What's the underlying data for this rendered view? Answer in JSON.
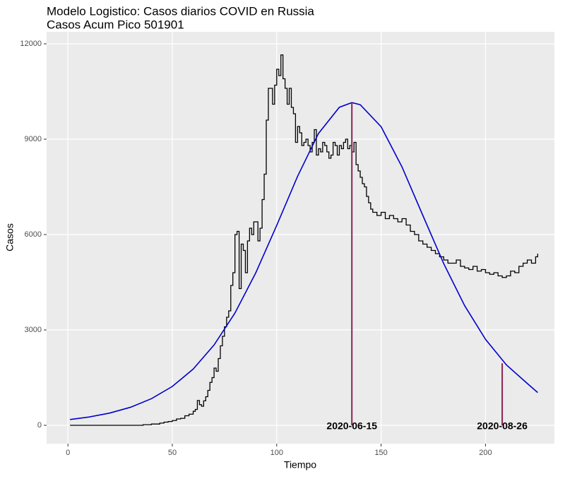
{
  "chart_data": {
    "type": "step",
    "title": "Modelo Logistico: Casos diarios COVID en Russia",
    "subtitle": "Casos Acum Pico 501901",
    "x_label": "Tiempo",
    "y_label": "Casos",
    "xlim": [
      -10.2,
      233
    ],
    "ylim": [
      -578,
      12378
    ],
    "xticks": [
      0,
      50,
      100,
      150,
      200
    ],
    "yticks": [
      0,
      3000,
      6000,
      9000,
      12000
    ],
    "grid": true,
    "series": [
      {
        "color": "#000000",
        "x": [
          1,
          36,
          40,
          44,
          46,
          48,
          50,
          52,
          54,
          56,
          58,
          60,
          61,
          62,
          63,
          64,
          65,
          66,
          67,
          68,
          69,
          70,
          71,
          72,
          73,
          74,
          75,
          76,
          77,
          78,
          79,
          80,
          81,
          82,
          83,
          84,
          85,
          86,
          87,
          88,
          89,
          90,
          91,
          92,
          93,
          94,
          95,
          96,
          97,
          98,
          99,
          100,
          101,
          102,
          103,
          104,
          105,
          106,
          107,
          108,
          109,
          110,
          111,
          112,
          113,
          114,
          115,
          116,
          117,
          118,
          119,
          120,
          121,
          122,
          123,
          124,
          125,
          126,
          127,
          128,
          129,
          130,
          131,
          132,
          133,
          134,
          135,
          136,
          137,
          138,
          139,
          140,
          141,
          142,
          143,
          144,
          145,
          146,
          148,
          150,
          152,
          154,
          156,
          158,
          160,
          162,
          164,
          166,
          168,
          170,
          172,
          174,
          176,
          178,
          180,
          182,
          184,
          186,
          188,
          190,
          192,
          194,
          196,
          198,
          200,
          202,
          204,
          206,
          208,
          210,
          212,
          214,
          216,
          218,
          220,
          222,
          224,
          225
        ],
        "values": [
          0,
          20,
          40,
          70,
          100,
          120,
          150,
          200,
          220,
          300,
          350,
          440,
          500,
          780,
          650,
          600,
          770,
          900,
          1100,
          1350,
          1500,
          1800,
          1700,
          2100,
          2500,
          2800,
          3100,
          3400,
          3600,
          4400,
          4800,
          6000,
          6100,
          4300,
          5700,
          5500,
          4800,
          5800,
          6200,
          6000,
          6400,
          6400,
          5800,
          6200,
          7100,
          7900,
          9600,
          10600,
          10600,
          10100,
          10700,
          11200,
          11000,
          11650,
          10900,
          10600,
          10100,
          10600,
          10000,
          9800,
          8900,
          9400,
          9200,
          8800,
          8900,
          9000,
          8800,
          8600,
          8900,
          9300,
          8500,
          8700,
          8600,
          8900,
          8800,
          8600,
          8400,
          8500,
          8900,
          8800,
          8500,
          8800,
          8700,
          8900,
          9000,
          8700,
          8800,
          8600,
          8900,
          8200,
          8000,
          7800,
          7600,
          7500,
          7200,
          7000,
          6800,
          6700,
          6600,
          6700,
          6500,
          6600,
          6500,
          6400,
          6500,
          6300,
          6100,
          6000,
          5800,
          5700,
          5600,
          5500,
          5400,
          5300,
          5200,
          5100,
          5100,
          5200,
          5000,
          4950,
          4900,
          5000,
          4850,
          4900,
          4800,
          4750,
          4800,
          4700,
          4650,
          4700,
          4850,
          4800,
          5000,
          5100,
          5200,
          5100,
          5300,
          5400
        ]
      },
      {
        "color": "#0000cd",
        "x": [
          1,
          10,
          20,
          30,
          40,
          50,
          60,
          70,
          80,
          90,
          100,
          110,
          120,
          130,
          136,
          140,
          150,
          160,
          170,
          180,
          190,
          200,
          210,
          220,
          225
        ],
        "values": [
          182,
          259,
          385,
          568,
          837,
          1222,
          1769,
          2526,
          3532,
          4800,
          6287,
          7832,
          9179,
          10004,
          10150,
          10085,
          9393,
          8128,
          6600,
          5084,
          3765,
          2705,
          1901,
          1316,
          1030
        ]
      }
    ],
    "vlines_color": "#8b2252",
    "vlines": [
      {
        "x": 136,
        "y": 10150,
        "label": "2020-06-15"
      },
      {
        "x": 208,
        "y": 1950,
        "label": "2020-08-26"
      }
    ]
  }
}
